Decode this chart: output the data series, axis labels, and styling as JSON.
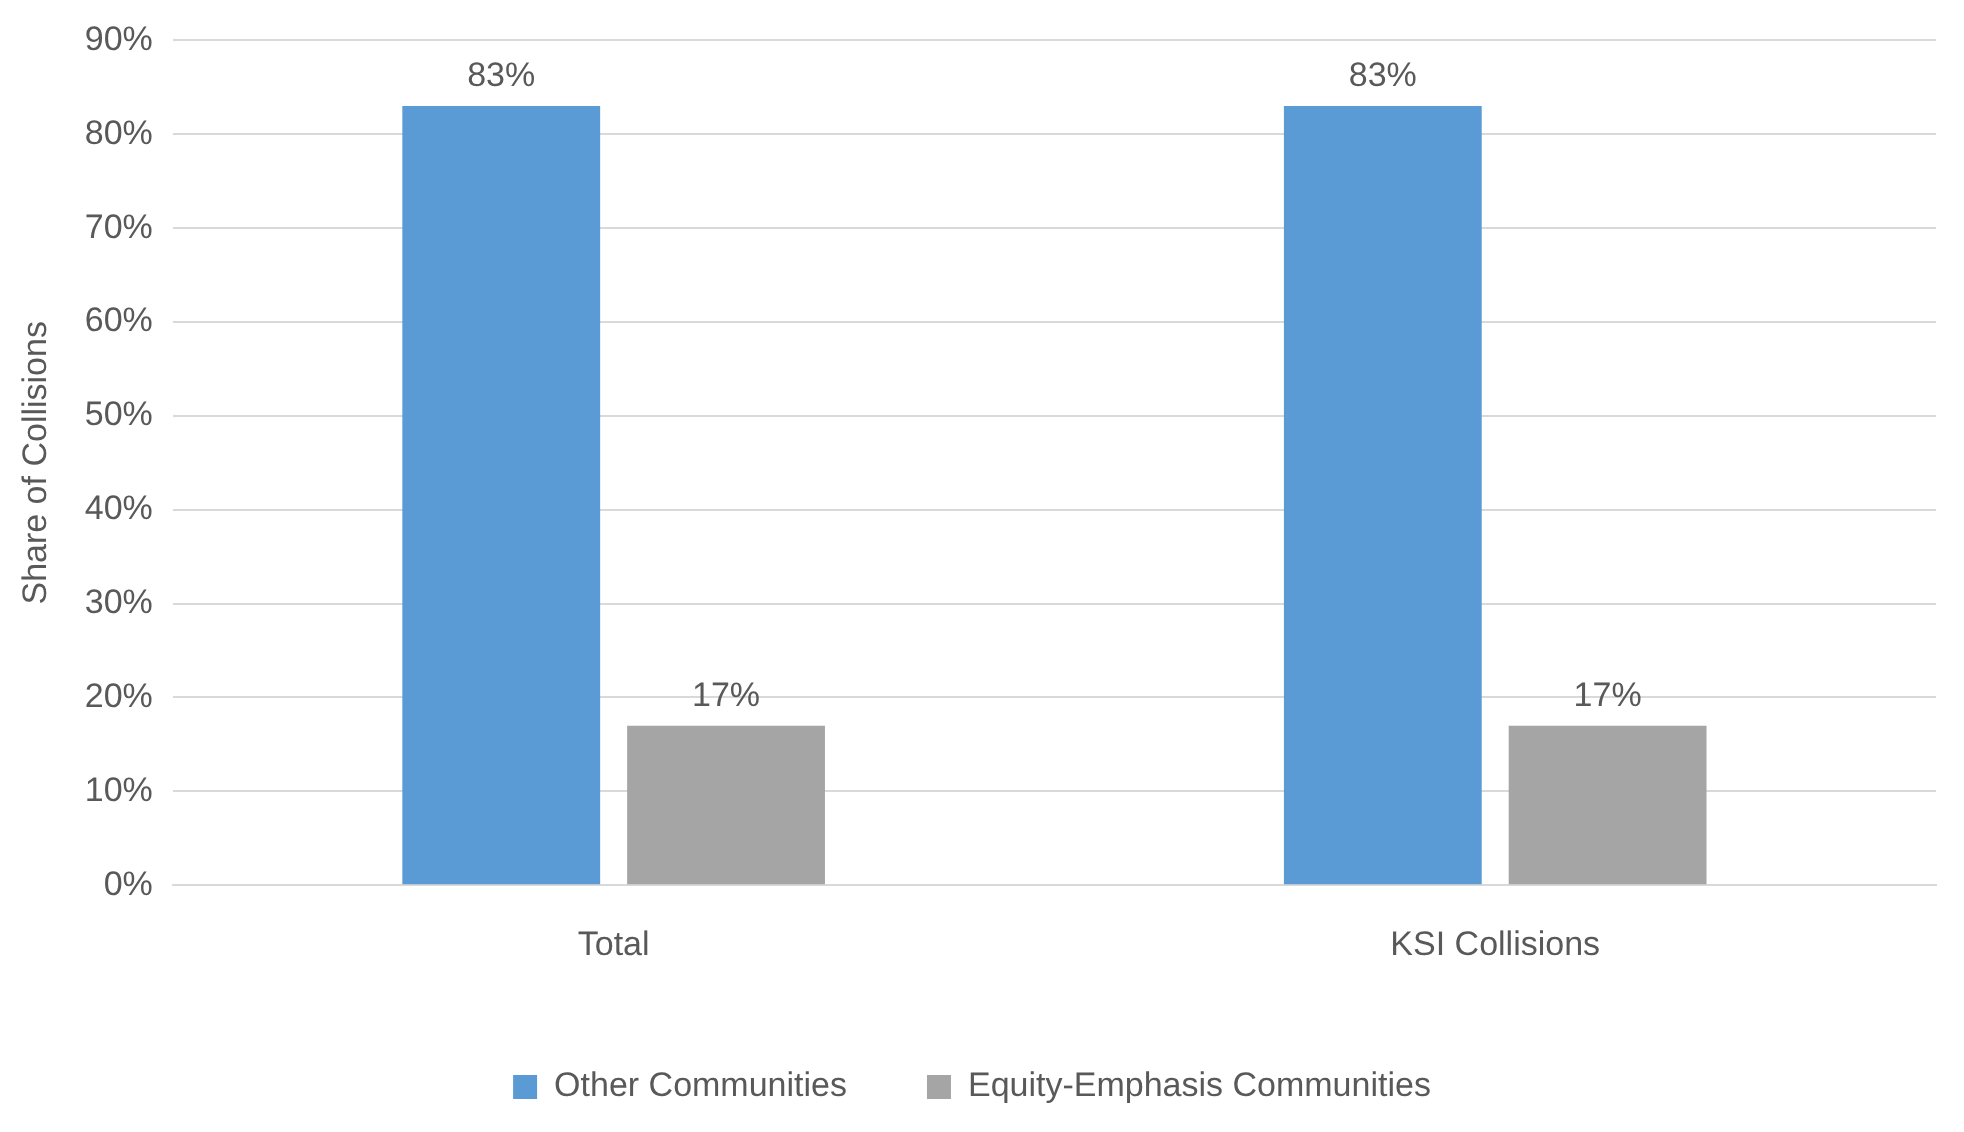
{
  "chart_data": {
    "type": "bar",
    "ylabel": "Share of Collisions",
    "categories": [
      "Total",
      "KSI Collisions"
    ],
    "series": [
      {
        "name": "Other Communities",
        "color": "#5b9bd5",
        "values": [
          83,
          83
        ],
        "value_labels": [
          "83%",
          "83%"
        ]
      },
      {
        "name": "Equity-Emphasis Communities",
        "color": "#a5a5a5",
        "values": [
          17,
          17
        ],
        "value_labels": [
          "17%",
          "17%"
        ]
      }
    ],
    "ylim": [
      0,
      90
    ],
    "yticks": [
      {
        "value": 0,
        "label": "0%"
      },
      {
        "value": 10,
        "label": "10%"
      },
      {
        "value": 20,
        "label": "20%"
      },
      {
        "value": 30,
        "label": "30%"
      },
      {
        "value": 40,
        "label": "40%"
      },
      {
        "value": 50,
        "label": "50%"
      },
      {
        "value": 60,
        "label": "60%"
      },
      {
        "value": 70,
        "label": "70%"
      },
      {
        "value": 80,
        "label": "80%"
      },
      {
        "value": 90,
        "label": "90%"
      }
    ],
    "grid": "y",
    "legend": "bottom"
  }
}
